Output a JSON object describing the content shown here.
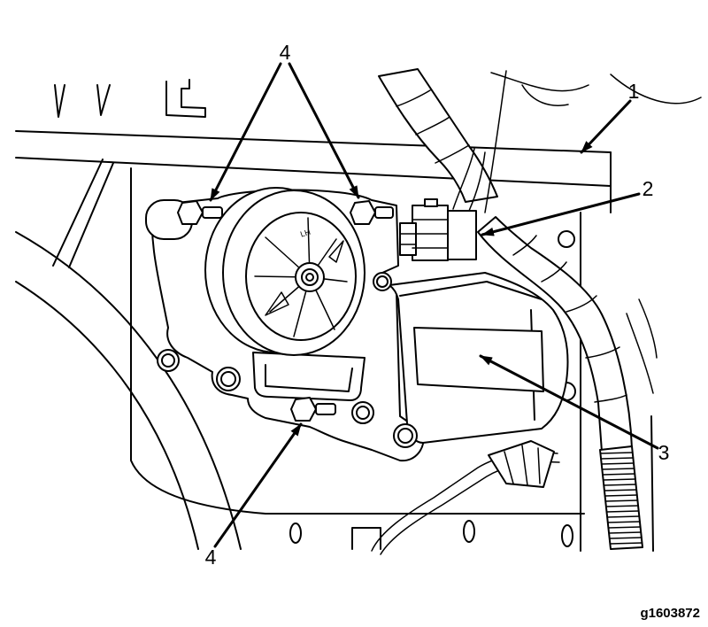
{
  "figure": {
    "callouts": [
      {
        "label": "4"
      },
      {
        "label": "1"
      },
      {
        "label": "2"
      },
      {
        "label": "3"
      },
      {
        "label": "4"
      }
    ],
    "motor_marking": "LH",
    "figure_id": "g1603872"
  },
  "colors": {
    "line": "#000000",
    "background": "#ffffff"
  }
}
